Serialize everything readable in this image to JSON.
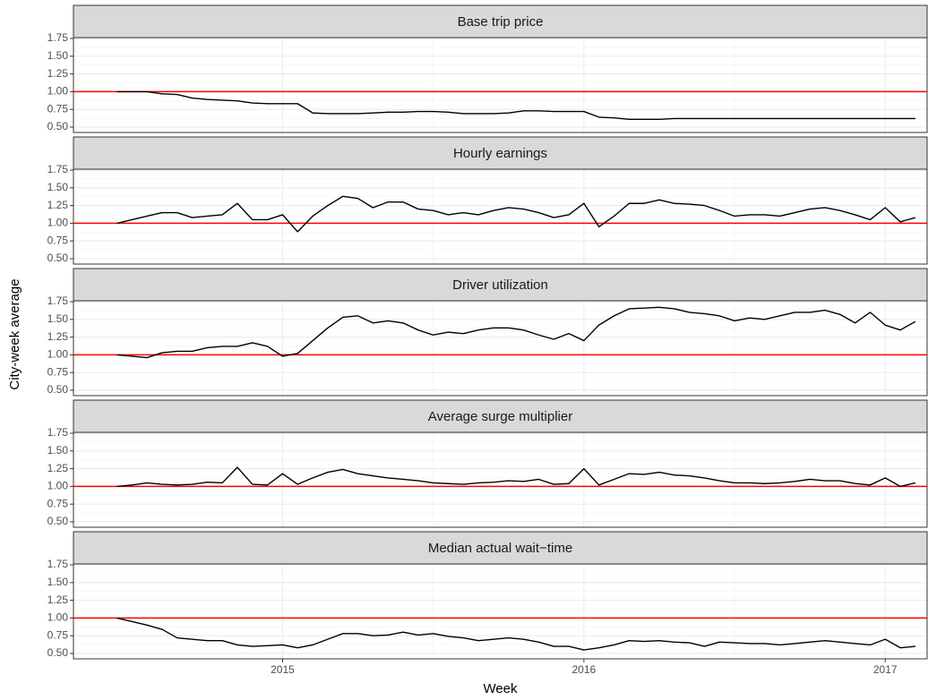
{
  "chart_data": [
    {
      "type": "line",
      "title": "Base trip price",
      "x": [
        2014.45,
        2014.5,
        2014.55,
        2014.6,
        2014.65,
        2014.7,
        2014.75,
        2014.8,
        2014.85,
        2014.9,
        2014.95,
        2015.0,
        2015.05,
        2015.1,
        2015.15,
        2015.2,
        2015.25,
        2015.3,
        2015.35,
        2015.4,
        2015.45,
        2015.5,
        2015.55,
        2015.6,
        2015.65,
        2015.7,
        2015.75,
        2015.8,
        2015.85,
        2015.9,
        2015.95,
        2016.0,
        2016.05,
        2016.1,
        2016.15,
        2016.2,
        2016.25,
        2016.3,
        2016.35,
        2016.4,
        2016.45,
        2016.5,
        2016.55,
        2016.6,
        2016.65,
        2016.7,
        2016.75,
        2016.8,
        2016.85,
        2016.9,
        2016.95,
        2017.0,
        2017.05,
        2017.1
      ],
      "series": [
        {
          "color": "#000000",
          "values": [
            1.0,
            1.0,
            1.0,
            0.97,
            0.96,
            0.91,
            0.89,
            0.88,
            0.87,
            0.84,
            0.83,
            0.83,
            0.83,
            0.7,
            0.69,
            0.69,
            0.69,
            0.7,
            0.71,
            0.71,
            0.72,
            0.72,
            0.71,
            0.69,
            0.69,
            0.69,
            0.7,
            0.73,
            0.73,
            0.72,
            0.72,
            0.72,
            0.64,
            0.63,
            0.61,
            0.61,
            0.61,
            0.62,
            0.62,
            0.62,
            0.62,
            0.62,
            0.62,
            0.62,
            0.62,
            0.62,
            0.62,
            0.62,
            0.62,
            0.62,
            0.62,
            0.62,
            0.62,
            0.62
          ]
        }
      ],
      "hline": 1,
      "hline_color": "#ff0000",
      "xlim": [
        2014.306,
        2017.139
      ],
      "xticks": [
        2015,
        2016,
        2017
      ],
      "ylim": [
        0.424,
        1.763
      ],
      "yticks": [
        {
          "value": 0.5,
          "label": "0.50"
        },
        {
          "value": 0.75,
          "label": "0.75"
        },
        {
          "value": 1,
          "label": "1.00"
        },
        {
          "value": 1.25,
          "label": "1.25"
        },
        {
          "value": 1.5,
          "label": "1.50"
        },
        {
          "value": 1.75,
          "label": "1.75"
        }
      ],
      "grid": true
    },
    {
      "type": "line",
      "title": "Hourly earnings",
      "x": [
        2014.45,
        2014.5,
        2014.55,
        2014.6,
        2014.65,
        2014.7,
        2014.75,
        2014.8,
        2014.85,
        2014.9,
        2014.95,
        2015.0,
        2015.05,
        2015.1,
        2015.15,
        2015.2,
        2015.25,
        2015.3,
        2015.35,
        2015.4,
        2015.45,
        2015.5,
        2015.55,
        2015.6,
        2015.65,
        2015.7,
        2015.75,
        2015.8,
        2015.85,
        2015.9,
        2015.95,
        2016.0,
        2016.05,
        2016.1,
        2016.15,
        2016.2,
        2016.25,
        2016.3,
        2016.35,
        2016.4,
        2016.45,
        2016.5,
        2016.55,
        2016.6,
        2016.65,
        2016.7,
        2016.75,
        2016.8,
        2016.85,
        2016.9,
        2016.95,
        2017.0,
        2017.05,
        2017.1
      ],
      "series": [
        {
          "color": "#000000",
          "values": [
            1.0,
            1.05,
            1.1,
            1.15,
            1.15,
            1.08,
            1.1,
            1.12,
            1.28,
            1.05,
            1.05,
            1.12,
            0.88,
            1.1,
            1.25,
            1.38,
            1.35,
            1.22,
            1.3,
            1.3,
            1.2,
            1.18,
            1.12,
            1.15,
            1.12,
            1.18,
            1.22,
            1.2,
            1.15,
            1.08,
            1.12,
            1.28,
            0.95,
            1.1,
            1.28,
            1.28,
            1.33,
            1.28,
            1.27,
            1.25,
            1.18,
            1.1,
            1.12,
            1.12,
            1.1,
            1.15,
            1.2,
            1.22,
            1.18,
            1.12,
            1.05,
            1.22,
            1.02,
            1.08
          ]
        }
      ],
      "hline": 1,
      "hline_color": "#ff0000",
      "xlim": [
        2014.306,
        2017.139
      ],
      "xticks": [
        2015,
        2016,
        2017
      ],
      "ylim": [
        0.424,
        1.763
      ],
      "yticks": [
        {
          "value": 0.5,
          "label": "0.50"
        },
        {
          "value": 0.75,
          "label": "0.75"
        },
        {
          "value": 1,
          "label": "1.00"
        },
        {
          "value": 1.25,
          "label": "1.25"
        },
        {
          "value": 1.5,
          "label": "1.50"
        },
        {
          "value": 1.75,
          "label": "1.75"
        }
      ],
      "grid": true
    },
    {
      "type": "line",
      "title": "Driver utilization",
      "ylabel": "City-week average",
      "x": [
        2014.45,
        2014.5,
        2014.55,
        2014.6,
        2014.65,
        2014.7,
        2014.75,
        2014.8,
        2014.85,
        2014.9,
        2014.95,
        2015.0,
        2015.05,
        2015.1,
        2015.15,
        2015.2,
        2015.25,
        2015.3,
        2015.35,
        2015.4,
        2015.45,
        2015.5,
        2015.55,
        2015.6,
        2015.65,
        2015.7,
        2015.75,
        2015.8,
        2015.85,
        2015.9,
        2015.95,
        2016.0,
        2016.05,
        2016.1,
        2016.15,
        2016.2,
        2016.25,
        2016.3,
        2016.35,
        2016.4,
        2016.45,
        2016.5,
        2016.55,
        2016.6,
        2016.65,
        2016.7,
        2016.75,
        2016.8,
        2016.85,
        2016.9,
        2016.95,
        2017.0,
        2017.05,
        2017.1
      ],
      "series": [
        {
          "color": "#000000",
          "values": [
            1.0,
            0.98,
            0.96,
            1.03,
            1.05,
            1.05,
            1.1,
            1.12,
            1.12,
            1.17,
            1.12,
            0.98,
            1.02,
            1.2,
            1.38,
            1.53,
            1.55,
            1.45,
            1.48,
            1.45,
            1.35,
            1.28,
            1.32,
            1.3,
            1.35,
            1.38,
            1.38,
            1.35,
            1.28,
            1.22,
            1.3,
            1.2,
            1.42,
            1.55,
            1.65,
            1.66,
            1.67,
            1.65,
            1.6,
            1.58,
            1.55,
            1.48,
            1.52,
            1.5,
            1.55,
            1.6,
            1.6,
            1.63,
            1.57,
            1.45,
            1.6,
            1.42,
            1.35,
            1.47
          ]
        }
      ],
      "hline": 1,
      "hline_color": "#ff0000",
      "xlim": [
        2014.306,
        2017.139
      ],
      "xticks": [
        2015,
        2016,
        2017
      ],
      "ylim": [
        0.424,
        1.763
      ],
      "yticks": [
        {
          "value": 0.5,
          "label": "0.50"
        },
        {
          "value": 0.75,
          "label": "0.75"
        },
        {
          "value": 1,
          "label": "1.00"
        },
        {
          "value": 1.25,
          "label": "1.25"
        },
        {
          "value": 1.5,
          "label": "1.50"
        },
        {
          "value": 1.75,
          "label": "1.75"
        }
      ],
      "grid": true
    },
    {
      "type": "line",
      "title": "Average surge multiplier",
      "x": [
        2014.45,
        2014.5,
        2014.55,
        2014.6,
        2014.65,
        2014.7,
        2014.75,
        2014.8,
        2014.85,
        2014.9,
        2014.95,
        2015.0,
        2015.05,
        2015.1,
        2015.15,
        2015.2,
        2015.25,
        2015.3,
        2015.35,
        2015.4,
        2015.45,
        2015.5,
        2015.55,
        2015.6,
        2015.65,
        2015.7,
        2015.75,
        2015.8,
        2015.85,
        2015.9,
        2015.95,
        2016.0,
        2016.05,
        2016.1,
        2016.15,
        2016.2,
        2016.25,
        2016.3,
        2016.35,
        2016.4,
        2016.45,
        2016.5,
        2016.55,
        2016.6,
        2016.65,
        2016.7,
        2016.75,
        2016.8,
        2016.85,
        2016.9,
        2016.95,
        2017.0,
        2017.05,
        2017.1
      ],
      "series": [
        {
          "color": "#000000",
          "values": [
            1.0,
            1.02,
            1.05,
            1.03,
            1.02,
            1.03,
            1.06,
            1.05,
            1.27,
            1.03,
            1.02,
            1.18,
            1.03,
            1.12,
            1.2,
            1.24,
            1.18,
            1.15,
            1.12,
            1.1,
            1.08,
            1.05,
            1.04,
            1.03,
            1.05,
            1.06,
            1.08,
            1.07,
            1.1,
            1.03,
            1.04,
            1.25,
            1.02,
            1.1,
            1.18,
            1.17,
            1.2,
            1.16,
            1.15,
            1.12,
            1.08,
            1.05,
            1.05,
            1.04,
            1.05,
            1.07,
            1.1,
            1.08,
            1.08,
            1.04,
            1.02,
            1.12,
            1.0,
            1.05
          ]
        }
      ],
      "hline": 1,
      "hline_color": "#ff0000",
      "xlim": [
        2014.306,
        2017.139
      ],
      "xticks": [
        2015,
        2016,
        2017
      ],
      "ylim": [
        0.424,
        1.763
      ],
      "yticks": [
        {
          "value": 0.5,
          "label": "0.50"
        },
        {
          "value": 0.75,
          "label": "0.75"
        },
        {
          "value": 1,
          "label": "1.00"
        },
        {
          "value": 1.25,
          "label": "1.25"
        },
        {
          "value": 1.5,
          "label": "1.50"
        },
        {
          "value": 1.75,
          "label": "1.75"
        }
      ],
      "grid": true
    },
    {
      "type": "line",
      "title": "Median actual wait−time",
      "xlabel": "Week",
      "x": [
        2014.45,
        2014.5,
        2014.55,
        2014.6,
        2014.65,
        2014.7,
        2014.75,
        2014.8,
        2014.85,
        2014.9,
        2014.95,
        2015.0,
        2015.05,
        2015.1,
        2015.15,
        2015.2,
        2015.25,
        2015.3,
        2015.35,
        2015.4,
        2015.45,
        2015.5,
        2015.55,
        2015.6,
        2015.65,
        2015.7,
        2015.75,
        2015.8,
        2015.85,
        2015.9,
        2015.95,
        2016.0,
        2016.05,
        2016.1,
        2016.15,
        2016.2,
        2016.25,
        2016.3,
        2016.35,
        2016.4,
        2016.45,
        2016.5,
        2016.55,
        2016.6,
        2016.65,
        2016.7,
        2016.75,
        2016.8,
        2016.85,
        2016.9,
        2016.95,
        2017.0,
        2017.05,
        2017.1
      ],
      "series": [
        {
          "color": "#000000",
          "values": [
            1.0,
            0.95,
            0.9,
            0.84,
            0.72,
            0.7,
            0.68,
            0.68,
            0.62,
            0.6,
            0.61,
            0.62,
            0.58,
            0.62,
            0.7,
            0.78,
            0.78,
            0.75,
            0.76,
            0.8,
            0.76,
            0.78,
            0.74,
            0.72,
            0.68,
            0.7,
            0.72,
            0.7,
            0.66,
            0.6,
            0.6,
            0.55,
            0.58,
            0.62,
            0.68,
            0.67,
            0.68,
            0.66,
            0.65,
            0.6,
            0.66,
            0.65,
            0.64,
            0.64,
            0.62,
            0.64,
            0.66,
            0.68,
            0.66,
            0.64,
            0.62,
            0.7,
            0.58,
            0.6
          ]
        }
      ],
      "hline": 1,
      "hline_color": "#ff0000",
      "xlim": [
        2014.306,
        2017.139
      ],
      "xticks": [
        2015,
        2016,
        2017
      ],
      "ylim": [
        0.424,
        1.763
      ],
      "yticks": [
        {
          "value": 0.5,
          "label": "0.50"
        },
        {
          "value": 0.75,
          "label": "0.75"
        },
        {
          "value": 1,
          "label": "1.00"
        },
        {
          "value": 1.25,
          "label": "1.25"
        },
        {
          "value": 1.5,
          "label": "1.50"
        },
        {
          "value": 1.75,
          "label": "1.75"
        }
      ],
      "grid": true
    }
  ]
}
